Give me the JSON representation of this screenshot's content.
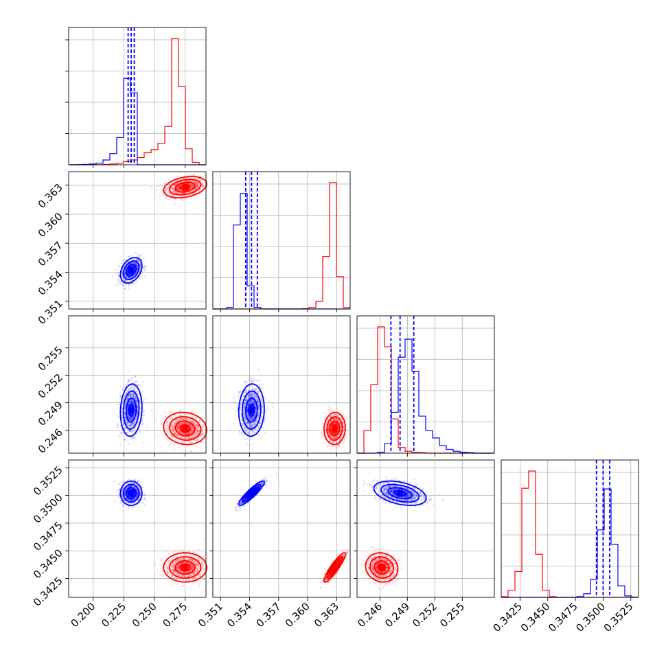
{
  "chart_data": {
    "type": "corner",
    "title": "",
    "grid": true,
    "series": [
      {
        "name": "",
        "color": "#0000ff"
      },
      {
        "name": "",
        "color": "#ff0000"
      }
    ],
    "params": [
      {
        "range": [
          0.18,
          0.292
        ],
        "ticks": [
          "0.200",
          "0.225",
          "0.250",
          "0.275"
        ]
      },
      {
        "range": [
          0.3502,
          0.3644
        ],
        "ticks": [
          "0.351",
          "0.354",
          "0.357",
          "0.360",
          "0.363"
        ]
      },
      {
        "range": [
          0.2435,
          0.2585
        ],
        "ticks": [
          "0.246",
          "0.249",
          "0.252",
          "0.255"
        ]
      },
      {
        "range": [
          0.3408,
          0.3532
        ],
        "ticks": [
          "0.3425",
          "0.3450",
          "0.3475",
          "0.3500",
          "0.3525"
        ]
      }
    ],
    "marginal_quantiles_blue": [
      [
        0.2285,
        0.231,
        0.2335
      ],
      [
        0.3536,
        0.3542,
        0.3548
      ],
      [
        0.2472,
        0.2482,
        0.2497
      ],
      [
        0.3494,
        0.35,
        0.3506
      ]
    ],
    "blue_means": [
      0.231,
      0.3542,
      0.2482,
      0.3502
    ],
    "red_means": [
      0.275,
      0.3628,
      0.2462,
      0.3435
    ],
    "blue_sigmas": [
      0.004,
      0.0006,
      0.0013,
      0.0005
    ],
    "red_sigmas": [
      0.008,
      0.0005,
      0.0008,
      0.0006
    ],
    "histograms": {
      "p0": {
        "bin_edges": [
          0.18,
          0.1856,
          0.1912,
          0.1968,
          0.2024,
          0.208,
          0.2136,
          0.2192,
          0.2248,
          0.2304,
          0.236,
          0.2416,
          0.2472,
          0.2528,
          0.2584,
          0.264,
          0.2696,
          0.2752,
          0.2808,
          0.2864,
          0.292
        ],
        "blue": [
          0,
          1,
          2,
          5,
          10,
          30,
          70,
          170,
          540,
          450,
          0,
          0,
          0,
          0,
          0,
          0,
          0,
          0,
          0,
          0
        ],
        "red": [
          0,
          0,
          0,
          0,
          0,
          2,
          5,
          10,
          20,
          30,
          45,
          75,
          95,
          135,
          240,
          790,
          490,
          100,
          15,
          0
        ]
      },
      "p1": {
        "bin_edges": [
          0.3502,
          0.35091,
          0.35162,
          0.35233,
          0.35304,
          0.35375,
          0.35446,
          0.35517,
          0.35588,
          0.35659,
          0.3573,
          0.35801,
          0.35872,
          0.35943,
          0.36014,
          0.36085,
          0.36156,
          0.36227,
          0.36298,
          0.36369,
          0.3644
        ],
        "blue": [
          0,
          0,
          10,
          545,
          750,
          150,
          10,
          0,
          0,
          0,
          0,
          0,
          0,
          0,
          0,
          0,
          0,
          0,
          0,
          0
        ],
        "red": [
          0,
          0,
          0,
          0,
          0,
          0,
          0,
          0,
          0,
          0,
          0,
          0,
          0,
          2,
          10,
          50,
          340,
          820,
          210,
          10
        ]
      },
      "p2": {
        "bin_edges": [
          0.2435,
          0.24425,
          0.245,
          0.24575,
          0.2465,
          0.24725,
          0.248,
          0.24875,
          0.2495,
          0.25025,
          0.251,
          0.25175,
          0.2525,
          0.25325,
          0.254,
          0.25475,
          0.2555,
          0.25625,
          0.257,
          0.25775,
          0.2585
        ],
        "blue": [
          0,
          0,
          0,
          5,
          50,
          215,
          505,
          600,
          430,
          195,
          120,
          80,
          40,
          20,
          10,
          5,
          3,
          0,
          0,
          0
        ],
        "red": [
          0,
          120,
          360,
          665,
          560,
          180,
          30,
          10,
          5,
          3,
          0,
          0,
          0,
          0,
          0,
          0,
          0,
          0,
          0,
          0
        ]
      },
      "p3": {
        "bin_edges": [
          0.3408,
          0.34142,
          0.34204,
          0.34266,
          0.34328,
          0.3439,
          0.34452,
          0.34514,
          0.34576,
          0.34638,
          0.347,
          0.34762,
          0.34824,
          0.34886,
          0.34948,
          0.3501,
          0.35072,
          0.35134,
          0.35196,
          0.35258,
          0.3532
        ],
        "blue": [
          0,
          0,
          0,
          0,
          0,
          0,
          0,
          0,
          0,
          0,
          0,
          5,
          25,
          125,
          470,
          755,
          370,
          80,
          10,
          2
        ],
        "red": [
          5,
          50,
          180,
          760,
          880,
          300,
          50,
          5,
          0,
          0,
          0,
          0,
          0,
          0,
          0,
          0,
          0,
          0,
          0,
          0
        ]
      }
    },
    "covariances": {
      "1_0": {
        "blue_rho": 0.35,
        "red_rho": 0.3
      },
      "2_0": {
        "blue_rho": 0.1,
        "red_rho": -0.1
      },
      "2_1": {
        "blue_rho": 0.05,
        "red_rho": 0.05
      },
      "3_0": {
        "blue_rho": 0.0,
        "red_rho": 0.0
      },
      "3_1": {
        "blue_rho": 0.9,
        "red_rho": 0.9
      },
      "3_2": {
        "blue_rho": -0.4,
        "red_rho": -0.1
      }
    }
  }
}
